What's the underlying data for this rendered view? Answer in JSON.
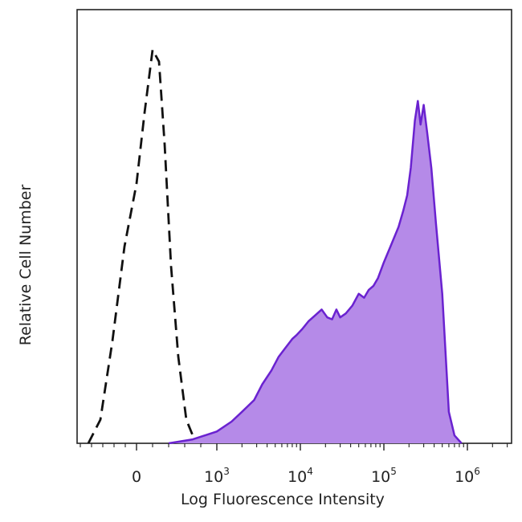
{
  "chart_data": {
    "type": "area",
    "xlabel": "Log Fluorescence Intensity",
    "ylabel": "Relative Cell Number",
    "x_scale": "biexponential",
    "x_tick_labels": [
      {
        "base": "0",
        "exp": "",
        "value": 0
      },
      {
        "base": "10",
        "exp": "3",
        "value": 1000
      },
      {
        "base": "10",
        "exp": "4",
        "value": 10000
      },
      {
        "base": "10",
        "exp": "5",
        "value": 100000
      },
      {
        "base": "10",
        "exp": "6",
        "value": 1000000
      }
    ],
    "ylim": [
      0,
      100
    ],
    "grid": false,
    "legend": "none",
    "series": [
      {
        "style": "dashed-outline",
        "color": "#111111",
        "x": [
          -600,
          -450,
          -300,
          -150,
          0,
          100,
          200,
          280,
          350,
          430,
          520,
          620,
          720,
          820
        ],
        "y": [
          0,
          6,
          26,
          50,
          66,
          84,
          100,
          97,
          76,
          45,
          22,
          6,
          1,
          0
        ]
      },
      {
        "style": "filled",
        "color": "#6a22d0",
        "fill": "#b58ae8",
        "x": [
          400,
          700,
          1000,
          1500,
          2000,
          2800,
          3500,
          4500,
          5500,
          6500,
          8000,
          9000,
          10500,
          12500,
          15000,
          18000,
          21000,
          24000,
          27000,
          30000,
          35000,
          42000,
          50000,
          58000,
          66000,
          75000,
          85000,
          100000,
          120000,
          150000,
          170000,
          190000,
          210000,
          235000,
          255000,
          275000,
          300000,
          330000,
          370000,
          420000,
          500000,
          600000,
          700000,
          850000
        ],
        "y": [
          0,
          1,
          3,
          5.5,
          8,
          11,
          15,
          18.5,
          22,
          24,
          26.5,
          27.5,
          29,
          31,
          32.5,
          34,
          32,
          31.5,
          34,
          32,
          33,
          35,
          38,
          37,
          39,
          40,
          42,
          46,
          50,
          55,
          59,
          63,
          70,
          82,
          87,
          81,
          86,
          79,
          70,
          56,
          38,
          8,
          2,
          0
        ]
      }
    ]
  }
}
